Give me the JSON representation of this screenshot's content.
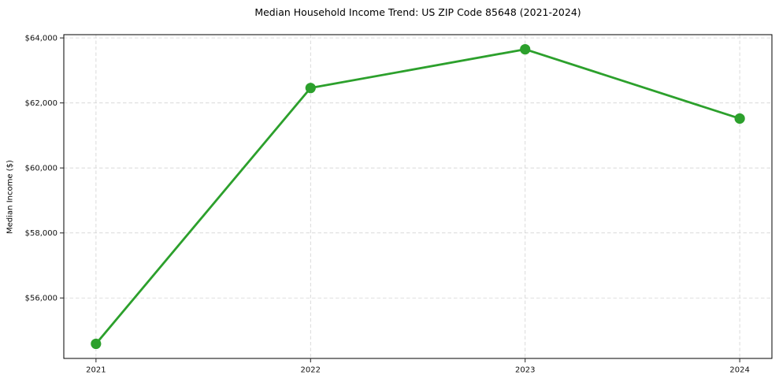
{
  "chart_data": {
    "type": "line",
    "title": "Median Household Income Trend: US ZIP Code 85648 (2021-2024)",
    "xlabel": "",
    "ylabel": "Median Income ($)",
    "x": [
      2021,
      2022,
      2023,
      2024
    ],
    "x_tick_labels": [
      "2021",
      "2022",
      "2023",
      "2024"
    ],
    "series": [
      {
        "name": "Median Household Income",
        "values": [
          54590,
          62460,
          63650,
          61520
        ]
      }
    ],
    "y_ticks": {
      "values": [
        56000,
        58000,
        60000,
        62000,
        64000
      ],
      "labels": [
        "$56,000",
        "$58,000",
        "$60,000",
        "$62,000",
        "$64,000"
      ]
    },
    "xlim": [
      2020.85,
      2024.15
    ],
    "ylim": [
      54140,
      64100
    ],
    "grid": true,
    "grid_style": "dashed",
    "legend_position": "none",
    "colors": {
      "line": "#2ca02c",
      "marker": "#2ca02c",
      "grid": "#d4d4d4",
      "spine": "#000000",
      "tick": "#222222",
      "text": "#111111",
      "background": "#ffffff"
    }
  }
}
